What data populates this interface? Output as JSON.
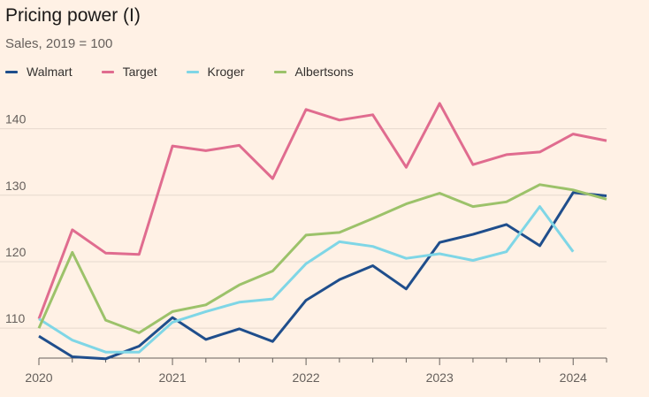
{
  "title": "Pricing power (I)",
  "subtitle": "Sales, 2019 = 100",
  "colors": {
    "background": "#fff1e5",
    "grid": "#e6d9ce",
    "axis": "#66605c"
  },
  "chart_data": {
    "type": "line",
    "title": "Pricing power (I)",
    "subtitle": "Sales, 2019 = 100",
    "xlabel": "",
    "ylabel": "",
    "x_ticks": [
      "2020",
      "2021",
      "2022",
      "2023",
      "2024"
    ],
    "y_ticks": [
      110,
      120,
      130,
      140
    ],
    "ylim": [
      105.5,
      145
    ],
    "xlim": [
      0,
      17
    ],
    "grid": true,
    "legend_placement": "top-left",
    "x": [
      "2020-Q1",
      "2020-Q2",
      "2020-Q3",
      "2020-Q4",
      "2021-Q1",
      "2021-Q2",
      "2021-Q3",
      "2021-Q4",
      "2022-Q1",
      "2022-Q2",
      "2022-Q3",
      "2022-Q4",
      "2023-Q1",
      "2023-Q2",
      "2023-Q3",
      "2023-Q4",
      "2024-Q1",
      "2024-Q2"
    ],
    "series": [
      {
        "name": "Walmart",
        "color": "#1f4e8c",
        "values": [
          108.8,
          105.7,
          105.4,
          107.3,
          111.6,
          108.3,
          109.9,
          108.0,
          114.2,
          117.3,
          119.4,
          115.9,
          122.9,
          124.1,
          125.6,
          122.4,
          130.4,
          129.9
        ]
      },
      {
        "name": "Target",
        "color": "#e06c8f",
        "values": [
          111.4,
          124.8,
          121.3,
          121.1,
          137.4,
          136.7,
          137.5,
          132.5,
          142.9,
          141.3,
          142.1,
          134.2,
          143.8,
          134.6,
          136.1,
          136.5,
          139.2,
          138.2
        ]
      },
      {
        "name": "Kroger",
        "color": "#7fd6e6",
        "values": [
          111.4,
          108.2,
          106.4,
          106.4,
          110.9,
          112.5,
          113.9,
          114.4,
          119.7,
          123.0,
          122.3,
          120.5,
          121.2,
          120.2,
          121.5,
          128.3,
          121.5,
          null
        ]
      },
      {
        "name": "Albertsons",
        "color": "#9cc26a",
        "values": [
          110.0,
          121.4,
          111.2,
          109.3,
          112.5,
          113.5,
          116.5,
          118.6,
          124.0,
          124.4,
          126.5,
          128.7,
          130.3,
          128.3,
          129.0,
          131.6,
          130.8,
          129.4
        ]
      }
    ]
  }
}
